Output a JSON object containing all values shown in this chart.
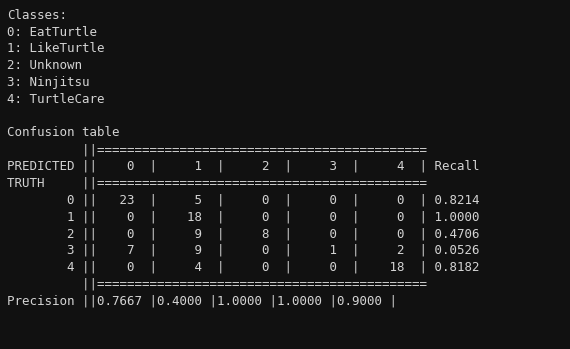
{
  "background_color": "#111111",
  "text_color": "#d4d4d4",
  "font_family": "monospace",
  "font_size": 9.0,
  "classes_header": "Classes:",
  "classes": [
    "0: EatTurtle",
    "1: LikeTurtle",
    "2: Unknown",
    "3: Ninjitsu",
    "4: TurtleCare"
  ],
  "confusion_matrix": [
    [
      23,
      5,
      0,
      0,
      0
    ],
    [
      0,
      18,
      0,
      0,
      0
    ],
    [
      0,
      9,
      8,
      0,
      0
    ],
    [
      7,
      9,
      0,
      1,
      2
    ],
    [
      0,
      4,
      0,
      0,
      18
    ]
  ],
  "recall": [
    "0.8214",
    "1.0000",
    "0.4706",
    "0.0526",
    "0.8182"
  ],
  "precision": [
    "0.7667",
    "0.4000",
    "1.0000",
    "1.0000",
    "0.9000"
  ],
  "lines": [
    "Classes:",
    "0: EatTurtle",
    "1: LikeTurtle",
    "2: Unknown",
    "3: Ninjitsu",
    "4: TurtleCare",
    "",
    "Confusion table",
    "          ||============================================",
    "PREDICTED ||    0  |     1  |     2  |     3  |     4  | Recall",
    "TRUTH     ||============================================",
    "        0 ||   23  |     5  |     0  |     0  |     0  | 0.8214",
    "        1 ||    0  |    18  |     0  |     0  |     0  | 1.0000",
    "        2 ||    0  |     9  |     8  |     0  |     0  | 0.4706",
    "        3 ||    7  |     9  |     0  |     1  |     2  | 0.0526",
    "        4 ||    0  |     4  |     0  |     0  |    18  | 0.8182",
    "          ||============================================",
    "Precision ||0.7667 |0.4000 |1.0000 |1.0000 |0.9000 |"
  ]
}
